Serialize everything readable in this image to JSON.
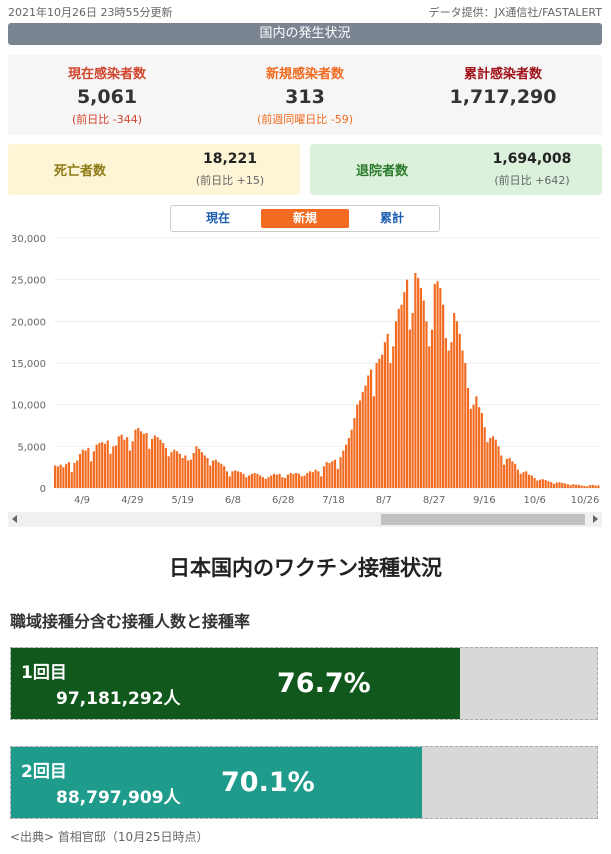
{
  "header": {
    "updated": "2021年10月26日 23時55分更新",
    "data_source": "データ提供：JX通信社/FASTALERT",
    "title": "国内の発生状況"
  },
  "stats": {
    "current": {
      "label": "現在感染者数",
      "value": "5,061",
      "sub": "(前日比 -344)"
    },
    "new": {
      "label": "新規感染者数",
      "value": "313",
      "sub": "(前週同曜日比 -59)"
    },
    "total": {
      "label": "累計感染者数",
      "value": "1,717,290"
    }
  },
  "deaths": {
    "label": "死亡者数",
    "value": "18,221",
    "sub": "(前日比 +15)"
  },
  "recovered": {
    "label": "退院者数",
    "value": "1,694,008",
    "sub": "(前日比 +642)"
  },
  "tabs": [
    "現在",
    "新規",
    "累計"
  ],
  "active_tab": "新規",
  "chart_data": {
    "type": "bar",
    "color": "#f26b21",
    "ylim": [
      0,
      30000
    ],
    "y_ticks": [
      "30,000",
      "25,000",
      "20,000",
      "15,000",
      "10,000",
      "5,000",
      "0"
    ],
    "x_ticks": [
      "4/9",
      "4/29",
      "5/19",
      "6/8",
      "6/28",
      "7/18",
      "8/7",
      "8/27",
      "9/16",
      "10/6",
      "10/26"
    ],
    "values": [
      2700,
      2600,
      2800,
      2500,
      2900,
      3100,
      1900,
      3000,
      3300,
      4100,
      4600,
      4500,
      4800,
      3200,
      4400,
      5200,
      5400,
      5500,
      5300,
      5700,
      4100,
      5000,
      5100,
      6200,
      6400,
      5800,
      6100,
      4500,
      5600,
      7000,
      7200,
      6800,
      6500,
      6600,
      4700,
      5900,
      6300,
      6100,
      5800,
      5400,
      4800,
      3800,
      4300,
      4600,
      4400,
      4100,
      3600,
      3900,
      3300,
      3400,
      4200,
      5000,
      4700,
      4300,
      3900,
      3600,
      2700,
      3300,
      3400,
      3100,
      2900,
      2600,
      2000,
      1400,
      2000,
      2100,
      2000,
      1900,
      1700,
      1300,
      1500,
      1700,
      1800,
      1700,
      1500,
      1300,
      1100,
      1300,
      1500,
      1700,
      1600,
      1700,
      1300,
      1200,
      1600,
      1800,
      1700,
      1800,
      1700,
      1400,
      1500,
      1800,
      2000,
      1900,
      2200,
      2000,
      1400,
      2600,
      3100,
      3000,
      3200,
      3400,
      2300,
      3700,
      4500,
      5200,
      6000,
      7000,
      8400,
      10000,
      10500,
      11500,
      12300,
      13500,
      14200,
      11000,
      15000,
      15500,
      16000,
      17500,
      18500,
      15000,
      17000,
      20000,
      21500,
      22000,
      23500,
      25000,
      19000,
      21000,
      25800,
      25200,
      24000,
      22500,
      20000,
      17000,
      19000,
      24500,
      24800,
      24000,
      22000,
      18000,
      16500,
      17500,
      21000,
      20000,
      18500,
      16500,
      15000,
      12000,
      9500,
      10000,
      11000,
      9700,
      9000,
      7300,
      5500,
      6000,
      6200,
      5800,
      5000,
      3900,
      2800,
      3500,
      3600,
      3200,
      2900,
      2200,
      1700,
      1900,
      2000,
      1600,
      1500,
      1200,
      900,
      1000,
      1050,
      950,
      800,
      700,
      500,
      650,
      700,
      600,
      550,
      450,
      350,
      450,
      400,
      380,
      300,
      250,
      200,
      350,
      380,
      300,
      313
    ]
  },
  "vaccine": {
    "title": "日本国内のワクチン接種状況",
    "subtitle": "職域接種分含む接種人数と接種率",
    "dose1": {
      "label": "1回目",
      "count": "97,181,292人",
      "percent": "76.7%",
      "rate": 0.767,
      "color": "#11581d"
    },
    "dose2": {
      "label": "2回目",
      "count": "88,797,909人",
      "percent": "70.1%",
      "rate": 0.701,
      "color": "#1f9b8c"
    },
    "source": "<出典> 首相官邸（10月25日時点）"
  }
}
